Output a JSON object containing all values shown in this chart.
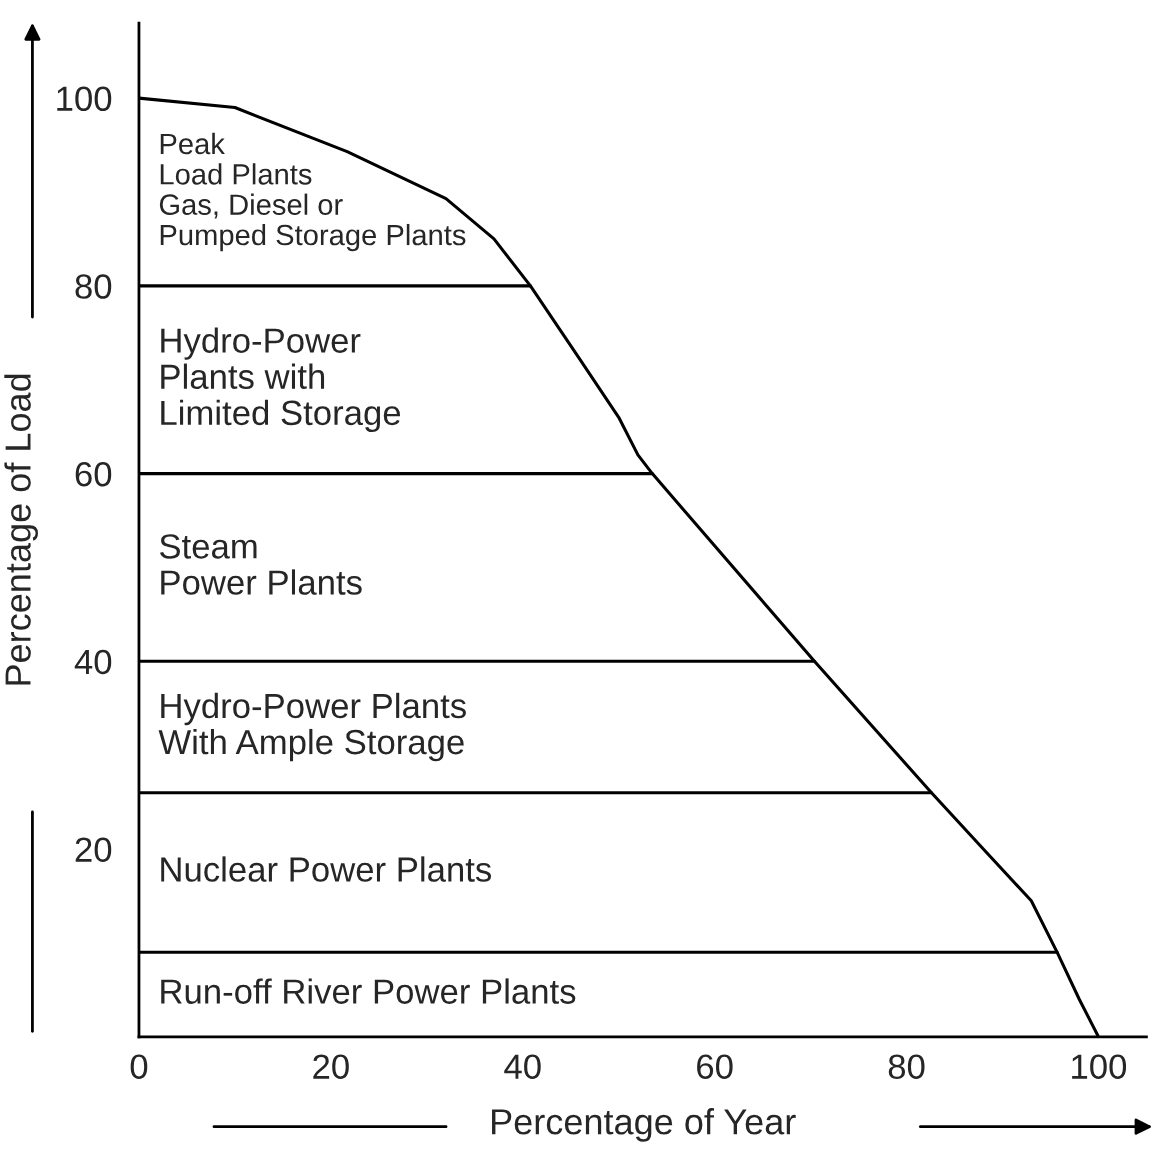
{
  "chart_data": {
    "type": "line",
    "xlabel": "Percentage of Year",
    "ylabel": "Percentage of Load",
    "series": [
      {
        "color": "#000000",
        "x": [
          0,
          10,
          21.7,
          32,
          37,
          40.8,
          45.8,
          50,
          52,
          53.5,
          70.4,
          82.6,
          88,
          93,
          95.7,
          98,
          100
        ],
        "values": [
          100,
          99,
          94.3,
          89.3,
          85,
          80,
          72.4,
          66,
          62,
          60,
          40,
          26,
          20,
          14.5,
          9,
          4,
          0
        ]
      },
      {
        "color": "#000000",
        "x": [
          0,
          40.8
        ],
        "values": [
          80,
          80
        ]
      },
      {
        "color": "#000000",
        "x": [
          0,
          53.5
        ],
        "values": [
          60,
          60
        ]
      },
      {
        "color": "#000000",
        "x": [
          0,
          70.4
        ],
        "values": [
          40,
          40
        ]
      },
      {
        "color": "#000000",
        "x": [
          0,
          82.6
        ],
        "values": [
          26,
          26
        ]
      },
      {
        "color": "#000000",
        "x": [
          0,
          95.7
        ],
        "values": [
          9,
          9
        ]
      }
    ],
    "xlim": [
      0,
      105
    ],
    "ylim": [
      0,
      108
    ],
    "xticks": [
      0,
      20,
      40,
      60,
      80,
      100
    ],
    "yticks": [
      20,
      40,
      60,
      80,
      100
    ],
    "annotations": [
      "Peak\nLoad Plants\nGas, Diesel or\nPumped Storage Plants",
      "Hydro-Power\nPlants with\nLimited Storage",
      "Steam\nPower Plants",
      "Hydro-Power Plants\nWith Ample Storage",
      "Nuclear Power Plants",
      "Run-off River Power Plants"
    ],
    "grid": false,
    "legend": false,
    "marker": "none",
    "line_style": "solid"
  }
}
